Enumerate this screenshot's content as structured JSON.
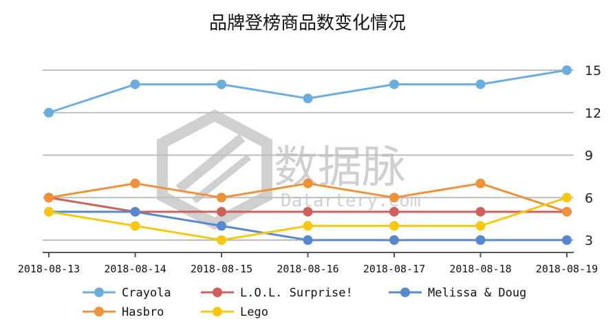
{
  "chart_data": {
    "type": "line",
    "title": "品牌登榜商品数变化情况",
    "xlabel": "",
    "ylabel": "",
    "categories": [
      "2018-08-13",
      "2018-08-14",
      "2018-08-15",
      "2018-08-16",
      "2018-08-17",
      "2018-08-18",
      "2018-08-19"
    ],
    "yticks": [
      3,
      6,
      9,
      12,
      15
    ],
    "ylim": [
      2.3,
      15.7
    ],
    "y_axis_side": "right",
    "grid": true,
    "legend_position": "bottom",
    "series": [
      {
        "name": "Crayola",
        "color": "#6aaddf",
        "values": [
          12,
          14,
          14,
          13,
          14,
          14,
          15
        ]
      },
      {
        "name": "L.O.L. Surprise!",
        "color": "#d0605a",
        "values": [
          6,
          5,
          5,
          5,
          5,
          5,
          5
        ]
      },
      {
        "name": "Melissa & Doug",
        "color": "#5588cc",
        "values": [
          5,
          5,
          4,
          3,
          3,
          3,
          3
        ]
      },
      {
        "name": "Hasbro",
        "color": "#f0913a",
        "values": [
          6,
          7,
          6,
          7,
          6,
          7,
          5
        ]
      },
      {
        "name": "Lego",
        "color": "#f8c810",
        "values": [
          5,
          4,
          3,
          4,
          4,
          4,
          6
        ]
      }
    ]
  },
  "watermark": {
    "main": "数据脉",
    "sub": "Datartery.com"
  }
}
